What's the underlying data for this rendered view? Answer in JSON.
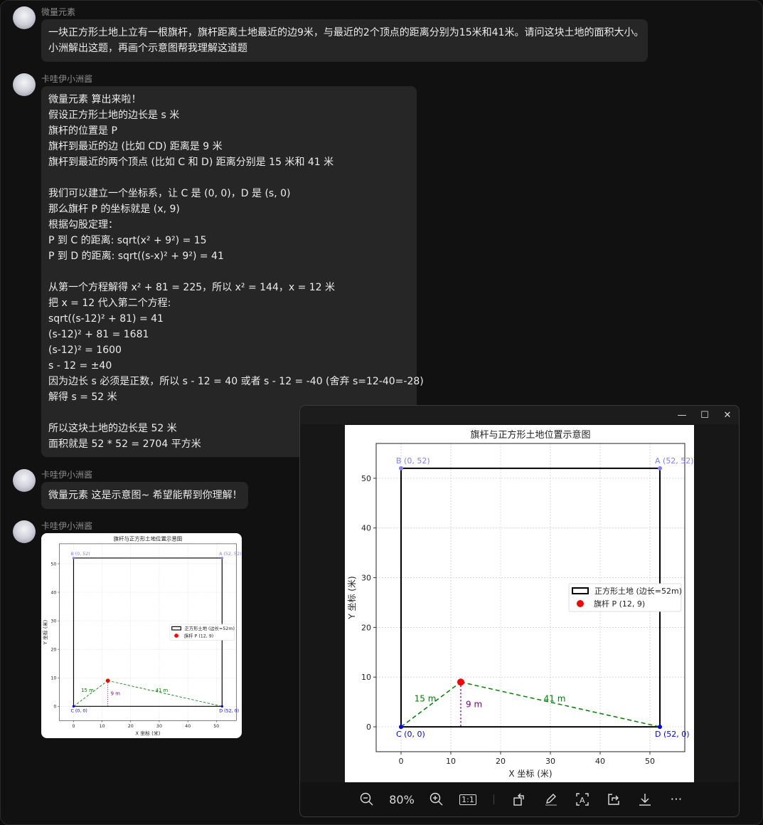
{
  "messages": [
    {
      "sender": "微量元素",
      "text": "一块正方形土地上立有一根旗杆，旗杆距离土地最近的边9米，与最近的2个顶点的距离分别为15米和41米。请问这块土地的面积大小。\n小洲解出这题，再画个示意图帮我理解这道题"
    },
    {
      "sender": "卡哇伊小洲酱",
      "text": "微量元素 算出来啦！\n假设正方形土地的边长是 s 米\n旗杆的位置是 P\n旗杆到最近的边 (比如 CD) 距离是 9 米\n旗杆到最近的两个顶点 (比如 C 和 D) 距离分别是 15 米和 41 米\n\n我们可以建立一个坐标系，让 C 是 (0, 0)，D 是 (s, 0)\n那么旗杆 P 的坐标就是 (x, 9)\n根据勾股定理：\nP 到 C 的距离: sqrt(x² + 9²) = 15\nP 到 D 的距离: sqrt((s-x)² + 9²) = 41\n\n从第一个方程解得 x² + 81 = 225，所以 x² = 144，x = 12 米\n把 x = 12 代入第二个方程:\nsqrt((s-12)² + 81) = 41\n(s-12)² + 81 = 1681\n(s-12)² = 1600\ns - 12 = ±40\n因为边长 s 必须是正数，所以 s - 12 = 40 或者 s - 12 = -40 (舍弃 s=12-40=-28)\n解得 s = 52 米\n\n所以这块土地的边长是 52 米\n面积就是 52 * 52 = 2704 平方米"
    },
    {
      "sender": "卡哇伊小洲酱",
      "text": "微量元素 这是示意图~ 希望能帮到你理解！"
    },
    {
      "sender": "卡哇伊小洲酱",
      "image": "chart"
    }
  ],
  "viewer": {
    "zoom": "80%",
    "window_buttons": [
      "minimize",
      "maximize",
      "close"
    ],
    "toolbar_icons": [
      "zoom-out-icon",
      "zoom-in-icon",
      "actual-size-icon",
      "rotate-icon",
      "edit-icon",
      "ocr-icon",
      "share-icon",
      "download-icon",
      "more-icon"
    ],
    "actual_size_label": "1:1"
  },
  "chart_data": {
    "type": "line",
    "title": "旗杆与正方形土地位置示意图",
    "xlabel": "X 坐标 (米)",
    "ylabel": "Y 坐标 (米)",
    "xlim": [
      -5,
      57
    ],
    "ylim": [
      -5,
      57
    ],
    "xticks": [
      0,
      10,
      20,
      30,
      40,
      50
    ],
    "yticks": [
      0,
      10,
      20,
      30,
      40,
      50
    ],
    "grid": true,
    "legend_placement": "center-right",
    "square": {
      "name": "正方形土地 (边长=52m)",
      "points": [
        [
          0,
          0
        ],
        [
          52,
          0
        ],
        [
          52,
          52
        ],
        [
          0,
          52
        ]
      ],
      "color": "#000000"
    },
    "flagpole": {
      "name": "旗杆 P (12, 9)",
      "x": 12,
      "y": 9,
      "color": "#ff0000"
    },
    "vertices": [
      {
        "label": "C (0, 0)",
        "x": 0,
        "y": 0,
        "color": "#0000ff"
      },
      {
        "label": "D (52, 0)",
        "x": 52,
        "y": 0,
        "color": "#0000ff"
      },
      {
        "label": "A (52, 52)",
        "x": 52,
        "y": 52,
        "color": "#7f7fff"
      },
      {
        "label": "B (0, 52)",
        "x": 0,
        "y": 52,
        "color": "#7f7fff"
      }
    ],
    "segments": [
      {
        "from": [
          0,
          0
        ],
        "to": [
          12,
          9
        ],
        "label": "15 m",
        "color": "#008000",
        "style": "dashed"
      },
      {
        "from": [
          12,
          9
        ],
        "to": [
          52,
          0
        ],
        "label": "41 m",
        "color": "#008000",
        "style": "dashed"
      },
      {
        "from": [
          12,
          9
        ],
        "to": [
          12,
          0
        ],
        "label": "9 m",
        "color": "#800080",
        "style": "dotted"
      }
    ]
  }
}
